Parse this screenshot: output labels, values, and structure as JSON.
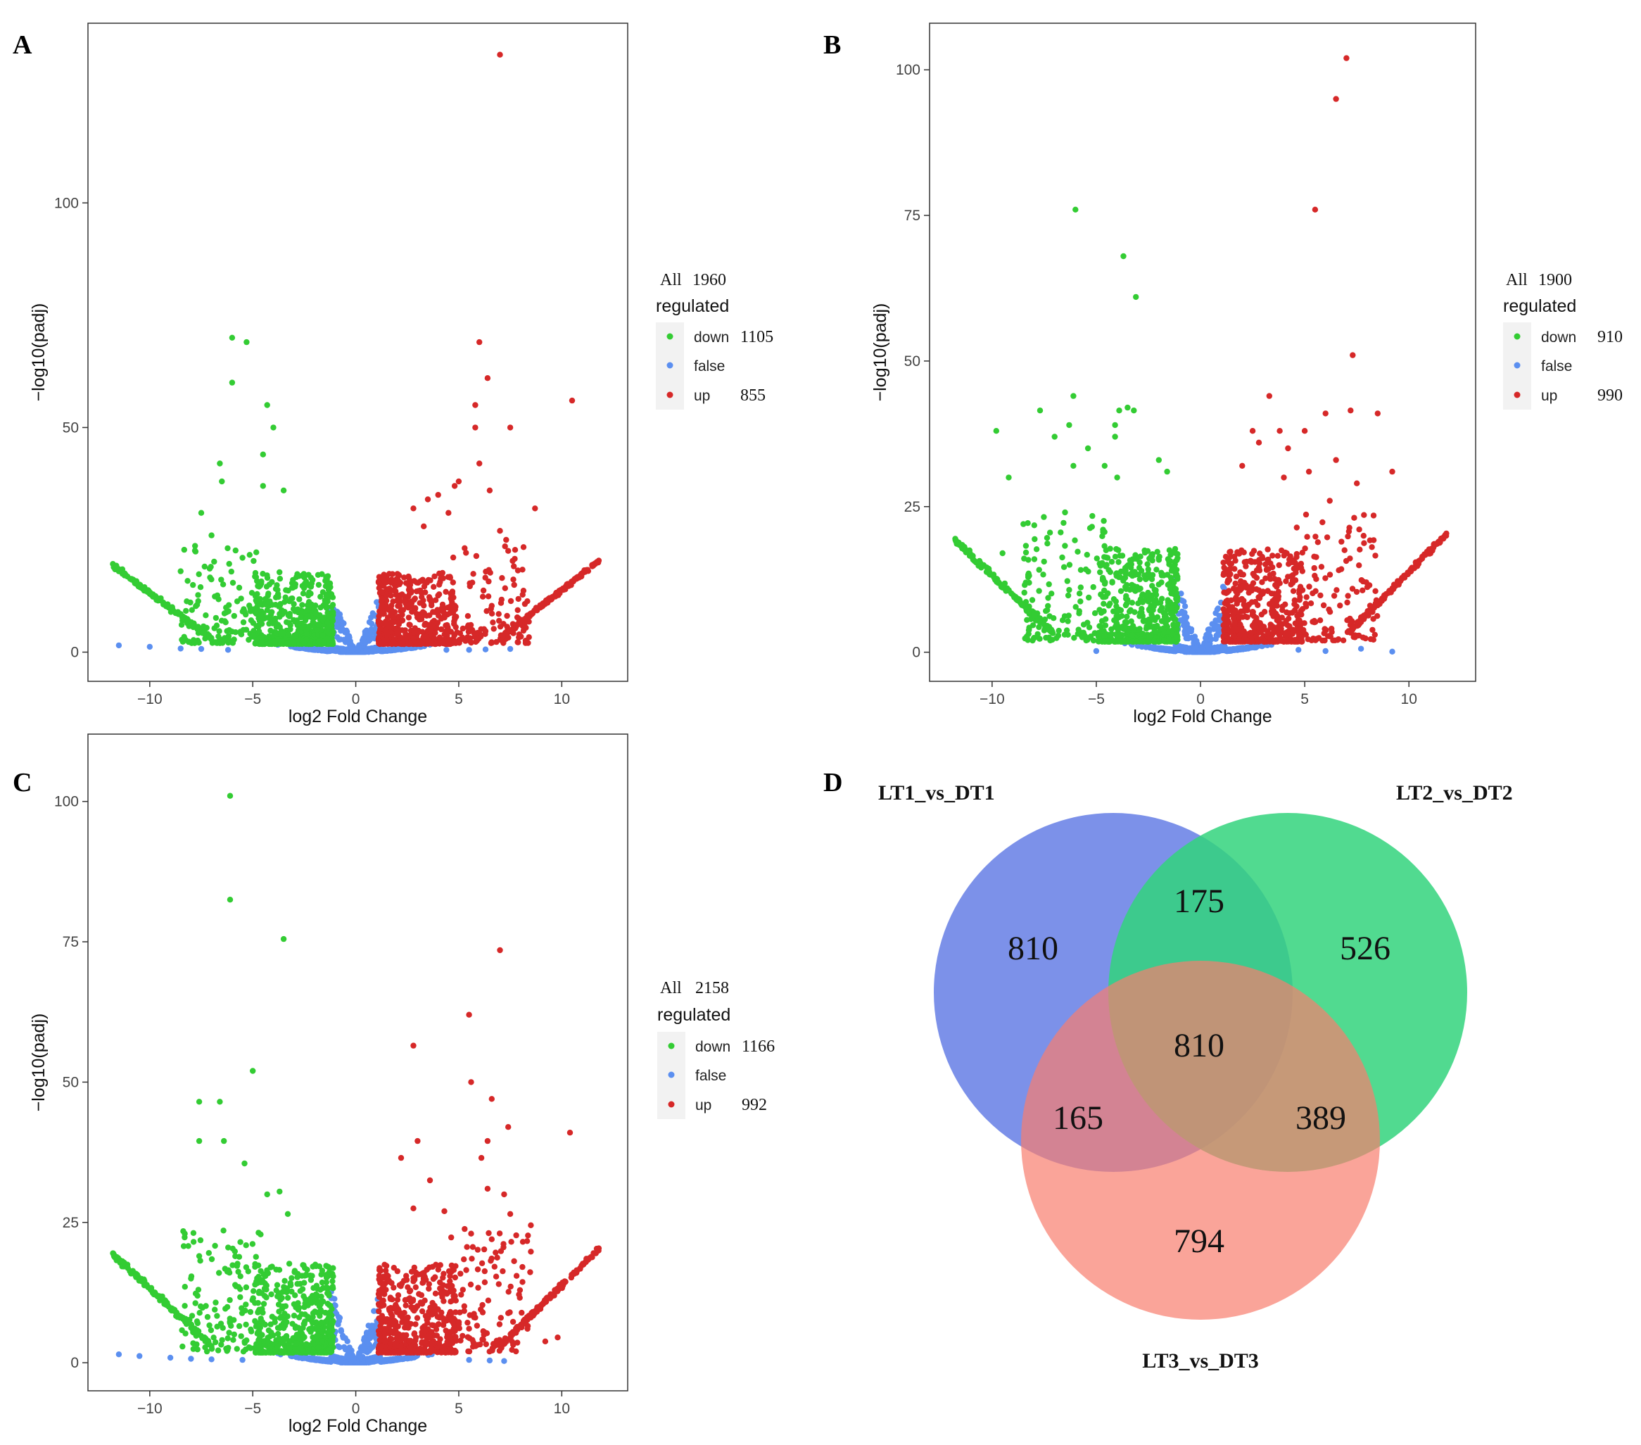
{
  "colors": {
    "down": "#33cc33",
    "false": "#5b8ff0",
    "up": "#d62828"
  },
  "chart_data": [
    {
      "panel": "A",
      "type": "scatter",
      "title": "",
      "xlabel": "log2 Fold Change",
      "ylabel": "−log10(padj)",
      "xlim": [
        -13,
        13.2
      ],
      "ylim": [
        -6.5,
        140
      ],
      "xticks": [
        -10,
        -5,
        0,
        5,
        10
      ],
      "xtick_labels": [
        "−10",
        "−5",
        "0",
        "5",
        "10"
      ],
      "yticks": [
        0,
        50,
        100
      ],
      "ytick_labels": [
        "0",
        "50",
        "100"
      ],
      "legend": {
        "all_label": "All",
        "all_value": "1960",
        "title": "regulated",
        "entries": [
          {
            "key": "down",
            "label": "down",
            "count": "1105"
          },
          {
            "key": "false",
            "label": "false",
            "count": ""
          },
          {
            "key": "up",
            "label": "up",
            "count": "855"
          }
        ]
      },
      "outliers": {
        "up": [
          [
            7.0,
            133
          ],
          [
            6.0,
            69
          ],
          [
            6.4,
            61
          ],
          [
            5.8,
            55
          ],
          [
            10.5,
            56
          ],
          [
            7.5,
            50
          ],
          [
            5.8,
            50
          ],
          [
            6.0,
            42
          ],
          [
            5.0,
            38
          ],
          [
            4.8,
            37
          ],
          [
            6.5,
            36
          ],
          [
            8.7,
            32
          ],
          [
            3.5,
            34
          ],
          [
            4.0,
            35
          ],
          [
            2.8,
            32
          ],
          [
            7.3,
            25
          ],
          [
            3.3,
            28
          ],
          [
            4.5,
            31
          ],
          [
            7.0,
            27
          ]
        ],
        "down": [
          [
            -6.0,
            70
          ],
          [
            -5.3,
            69
          ],
          [
            -6.0,
            60
          ],
          [
            -4.3,
            55
          ],
          [
            -4.0,
            50
          ],
          [
            -6.6,
            42
          ],
          [
            -4.5,
            44
          ],
          [
            -6.5,
            38
          ],
          [
            -7.5,
            31
          ],
          [
            -4.5,
            37
          ],
          [
            -3.5,
            36
          ],
          [
            -7.0,
            26
          ],
          [
            -5.5,
            21
          ],
          [
            -8.5,
            18
          ]
        ],
        "false": [
          [
            -11.5,
            1.5
          ],
          [
            -10,
            1.2
          ],
          [
            -8.5,
            0.8
          ],
          [
            -7.5,
            0.7
          ],
          [
            -6.2,
            0.5
          ],
          [
            7.5,
            0.7
          ],
          [
            6.3,
            0.6
          ],
          [
            5.5,
            0.5
          ],
          [
            4.4,
            0.5
          ]
        ]
      }
    },
    {
      "panel": "B",
      "type": "scatter",
      "title": "",
      "xlabel": "log2 Fold Change",
      "ylabel": "−log10(padj)",
      "xlim": [
        -13,
        13.2
      ],
      "ylim": [
        -5,
        108
      ],
      "xticks": [
        -10,
        -5,
        0,
        5,
        10
      ],
      "xtick_labels": [
        "−10",
        "−5",
        "0",
        "5",
        "10"
      ],
      "yticks": [
        0,
        25,
        50,
        75,
        100
      ],
      "ytick_labels": [
        "0",
        "25",
        "50",
        "75",
        "100"
      ],
      "legend": {
        "all_label": "All",
        "all_value": "1900",
        "title": "regulated",
        "entries": [
          {
            "key": "down",
            "label": "down",
            "count": "910"
          },
          {
            "key": "false",
            "label": "false",
            "count": ""
          },
          {
            "key": "up",
            "label": "up",
            "count": "990"
          }
        ]
      },
      "outliers": {
        "up": [
          [
            7.0,
            102
          ],
          [
            6.5,
            95
          ],
          [
            5.5,
            76
          ],
          [
            7.3,
            51
          ],
          [
            3.3,
            44
          ],
          [
            8.5,
            41
          ],
          [
            7.2,
            41.5
          ],
          [
            6.0,
            41
          ],
          [
            5.0,
            38
          ],
          [
            9.2,
            31
          ],
          [
            4.2,
            35
          ],
          [
            2.5,
            38
          ],
          [
            6.5,
            33
          ],
          [
            7.5,
            29
          ],
          [
            6.2,
            26
          ],
          [
            4.0,
            30
          ],
          [
            2.0,
            32
          ],
          [
            5.2,
            31
          ],
          [
            2.8,
            36
          ],
          [
            3.8,
            38
          ]
        ],
        "down": [
          [
            -6.0,
            76
          ],
          [
            -3.7,
            68
          ],
          [
            -3.1,
            61
          ],
          [
            -6.1,
            44
          ],
          [
            -3.5,
            42
          ],
          [
            -3.9,
            41.5
          ],
          [
            -3.2,
            41.5
          ],
          [
            -7.7,
            41.5
          ],
          [
            -9.8,
            38
          ],
          [
            -4.1,
            39
          ],
          [
            -6.3,
            39
          ],
          [
            -4.1,
            37
          ],
          [
            -7.0,
            37
          ],
          [
            -9.2,
            30
          ],
          [
            -5.4,
            35
          ],
          [
            -4.6,
            32
          ],
          [
            -6.1,
            32
          ],
          [
            -2.0,
            33
          ],
          [
            -1.6,
            31
          ],
          [
            -4.0,
            30
          ],
          [
            -8.5,
            22
          ],
          [
            -6.5,
            24
          ],
          [
            -9.5,
            17
          ]
        ],
        "false": [
          [
            6.0,
            0.2
          ],
          [
            7.7,
            0.6
          ],
          [
            9.2,
            0.1
          ],
          [
            -5.0,
            0.2
          ],
          [
            4.7,
            0.4
          ]
        ]
      }
    },
    {
      "panel": "C",
      "type": "scatter",
      "title": "",
      "xlabel": "log2 Fold Change",
      "ylabel": "−log10(padj)",
      "xlim": [
        -13,
        13.2
      ],
      "ylim": [
        -5,
        112
      ],
      "xticks": [
        -10,
        -5,
        0,
        5,
        10
      ],
      "xtick_labels": [
        "−10",
        "−5",
        "0",
        "5",
        "10"
      ],
      "yticks": [
        0,
        25,
        50,
        75,
        100
      ],
      "ytick_labels": [
        "0",
        "25",
        "50",
        "75",
        "100"
      ],
      "legend": {
        "all_label": "All",
        "all_value": "2158",
        "title": "regulated",
        "entries": [
          {
            "key": "down",
            "label": "down",
            "count": "1166"
          },
          {
            "key": "false",
            "label": "false",
            "count": ""
          },
          {
            "key": "up",
            "label": "up",
            "count": "992"
          }
        ]
      },
      "outliers": {
        "down": [
          [
            -6.1,
            101
          ],
          [
            -6.1,
            82.5
          ],
          [
            -3.5,
            75.5
          ],
          [
            -5.0,
            52
          ],
          [
            -7.6,
            46.5
          ],
          [
            -6.6,
            46.5
          ],
          [
            -7.6,
            39.5
          ],
          [
            -6.4,
            39.5
          ],
          [
            -5.4,
            35.5
          ],
          [
            -4.3,
            30
          ],
          [
            -3.7,
            30.5
          ],
          [
            -3.3,
            26.5
          ],
          [
            -8.3,
            23
          ],
          [
            -7.6,
            19
          ],
          [
            -5.6,
            21.5
          ],
          [
            -8.0,
            15
          ]
        ],
        "up": [
          [
            7.0,
            73.5
          ],
          [
            5.5,
            62
          ],
          [
            5.6,
            50
          ],
          [
            6.6,
            47
          ],
          [
            2.8,
            56.5
          ],
          [
            3.0,
            39.5
          ],
          [
            2.2,
            36.5
          ],
          [
            7.4,
            42
          ],
          [
            10.4,
            41
          ],
          [
            6.4,
            39.5
          ],
          [
            6.1,
            36.5
          ],
          [
            3.6,
            32.5
          ],
          [
            4.3,
            27
          ],
          [
            6.4,
            31
          ],
          [
            7.2,
            30
          ],
          [
            7.5,
            26.5
          ],
          [
            2.8,
            27.5
          ],
          [
            8.5,
            24.5
          ],
          [
            5.6,
            23
          ],
          [
            6.6,
            22
          ],
          [
            9.8,
            4.5
          ],
          [
            9.2,
            3.8
          ]
        ],
        "false": [
          [
            -11.5,
            1.5
          ],
          [
            -10.5,
            1.2
          ],
          [
            -9.0,
            0.9
          ],
          [
            -8.0,
            0.7
          ],
          [
            -7.0,
            0.6
          ],
          [
            -5.5,
            0.5
          ],
          [
            5.5,
            0.5
          ],
          [
            6.5,
            0.4
          ],
          [
            7.2,
            0.3
          ]
        ]
      }
    }
  ],
  "venn": {
    "panel": "D",
    "sets": [
      {
        "name": "LT1_vs_DT1",
        "color": "#5b75e3"
      },
      {
        "name": "LT2_vs_DT2",
        "color": "#33d47c"
      },
      {
        "name": "LT3_vs_DT3",
        "color": "#f87d6e"
      }
    ],
    "regions": {
      "only1": "810",
      "only2": "526",
      "only3": "794",
      "r12": "175",
      "r13": "165",
      "r23": "389",
      "r123": "810"
    }
  }
}
